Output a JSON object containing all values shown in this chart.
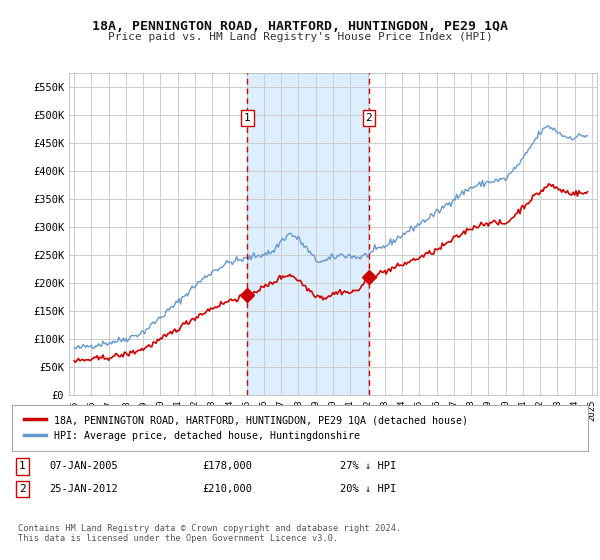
{
  "title": "18A, PENNINGTON ROAD, HARTFORD, HUNTINGDON, PE29 1QA",
  "subtitle": "Price paid vs. HM Land Registry's House Price Index (HPI)",
  "background_color": "#ffffff",
  "plot_bg_color": "#ffffff",
  "grid_color": "#cccccc",
  "red_line_label": "18A, PENNINGTON ROAD, HARTFORD, HUNTINGDON, PE29 1QA (detached house)",
  "blue_line_label": "HPI: Average price, detached house, Huntingdonshire",
  "sale1_date": "07-JAN-2005",
  "sale1_price": "£178,000",
  "sale1_hpi": "27% ↓ HPI",
  "sale2_date": "25-JAN-2012",
  "sale2_price": "£210,000",
  "sale2_hpi": "20% ↓ HPI",
  "footer": "Contains HM Land Registry data © Crown copyright and database right 2024.\nThis data is licensed under the Open Government Licence v3.0.",
  "ylim": [
    0,
    575000
  ],
  "yticks": [
    0,
    50000,
    100000,
    150000,
    200000,
    250000,
    300000,
    350000,
    400000,
    450000,
    500000,
    550000
  ],
  "ytick_labels": [
    "£0",
    "£50K",
    "£100K",
    "£150K",
    "£200K",
    "£250K",
    "£300K",
    "£350K",
    "£400K",
    "£450K",
    "£500K",
    "£550K"
  ],
  "sale1_x": 2005.04,
  "sale1_y": 178000,
  "sale2_x": 2012.07,
  "sale2_y": 210000,
  "shade_x1": 2005.04,
  "shade_x2": 2012.07,
  "red_color": "#cc0000",
  "blue_color": "#6699cc",
  "shade_color": "#ddeeff",
  "vline_color": "#cc0000",
  "marker_color": "#cc0000",
  "xlim_left": 1994.7,
  "xlim_right": 2025.3
}
